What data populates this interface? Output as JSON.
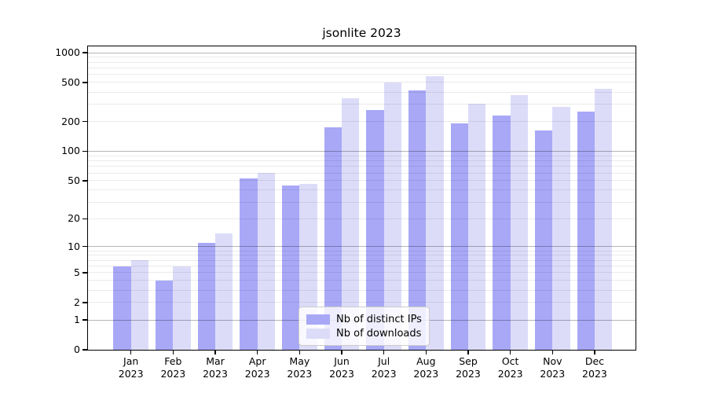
{
  "chart_data": {
    "type": "bar",
    "title": "jsonlite 2023",
    "categories": [
      "Jan 2023",
      "Feb 2023",
      "Mar 2023",
      "Apr 2023",
      "May 2023",
      "Jun 2023",
      "Jul 2023",
      "Aug 2023",
      "Sep 2023",
      "Oct 2023",
      "Nov 2023",
      "Dec 2023"
    ],
    "x_axis": {
      "months": [
        "Jan",
        "Feb",
        "Mar",
        "Apr",
        "May",
        "Jun",
        "Jul",
        "Aug",
        "Sep",
        "Oct",
        "Nov",
        "Dec"
      ],
      "year": "2023"
    },
    "series": [
      {
        "name": "Nb of distinct IPs",
        "color": "#a8a8f7",
        "values": [
          6,
          4,
          11,
          53,
          45,
          175,
          263,
          418,
          193,
          232,
          163,
          255
        ]
      },
      {
        "name": "Nb of downloads",
        "color": "#dcdcf9",
        "values": [
          7,
          6,
          14,
          60,
          46,
          348,
          500,
          580,
          304,
          370,
          284,
          430
        ]
      }
    ],
    "y_axis": {
      "scale": "log1p",
      "min": 0,
      "max": 1000,
      "ticks": [
        0,
        1,
        2,
        5,
        10,
        20,
        50,
        100,
        200,
        500,
        1000
      ],
      "tick_labels": [
        "0",
        "1",
        "2",
        "5",
        "10",
        "20",
        "50",
        "100",
        "200",
        "500",
        "1000"
      ],
      "major_grid_at": [
        1,
        10,
        100,
        1000
      ]
    },
    "legend": {
      "position": "inside-bottom-center",
      "labels": [
        "Nb of distinct IPs",
        "Nb of downloads"
      ]
    },
    "grid": "on, drawn over bars"
  },
  "colors": {
    "background": "#ffffff",
    "axis": "#000000",
    "major_grid": "#b5b5b5",
    "minor_grid": "#ececec",
    "legend_border": "#cccccc"
  }
}
